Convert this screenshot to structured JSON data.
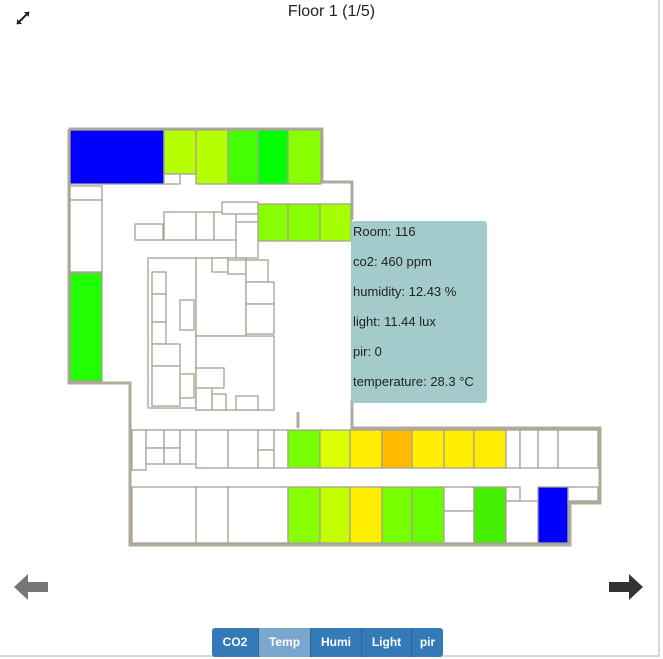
{
  "header": {
    "title": "Floor 1 (1/5)"
  },
  "icons": {
    "expand": "expand-arrows-icon",
    "prev": "arrow-left-icon",
    "next": "arrow-right-icon"
  },
  "tooltip": {
    "room": "Room: 116",
    "co2": "co2: 460 ppm",
    "humidity": "humidity: 12.43 %",
    "light": "light: 11.44 lux",
    "pir": "pir: 0",
    "temperature": "temperature: 28.3 °C"
  },
  "sensor_buttons": [
    {
      "label": "CO2",
      "active": false
    },
    {
      "label": "Temp",
      "active": true
    },
    {
      "label": "Humi",
      "active": false
    },
    {
      "label": "Light",
      "active": false
    },
    {
      "label": "pir",
      "active": false
    }
  ],
  "colors": {
    "blue": "#0000ff",
    "yellow_green": "#b5ff00",
    "lime": "#66ff00",
    "green": "#00ff00",
    "yellow": "#ffee00",
    "orange": "#ffbb00",
    "tooltip_bg": "#a3cbcc",
    "button_bg": "#337ab7",
    "button_active_bg": "#7ba7cf"
  }
}
